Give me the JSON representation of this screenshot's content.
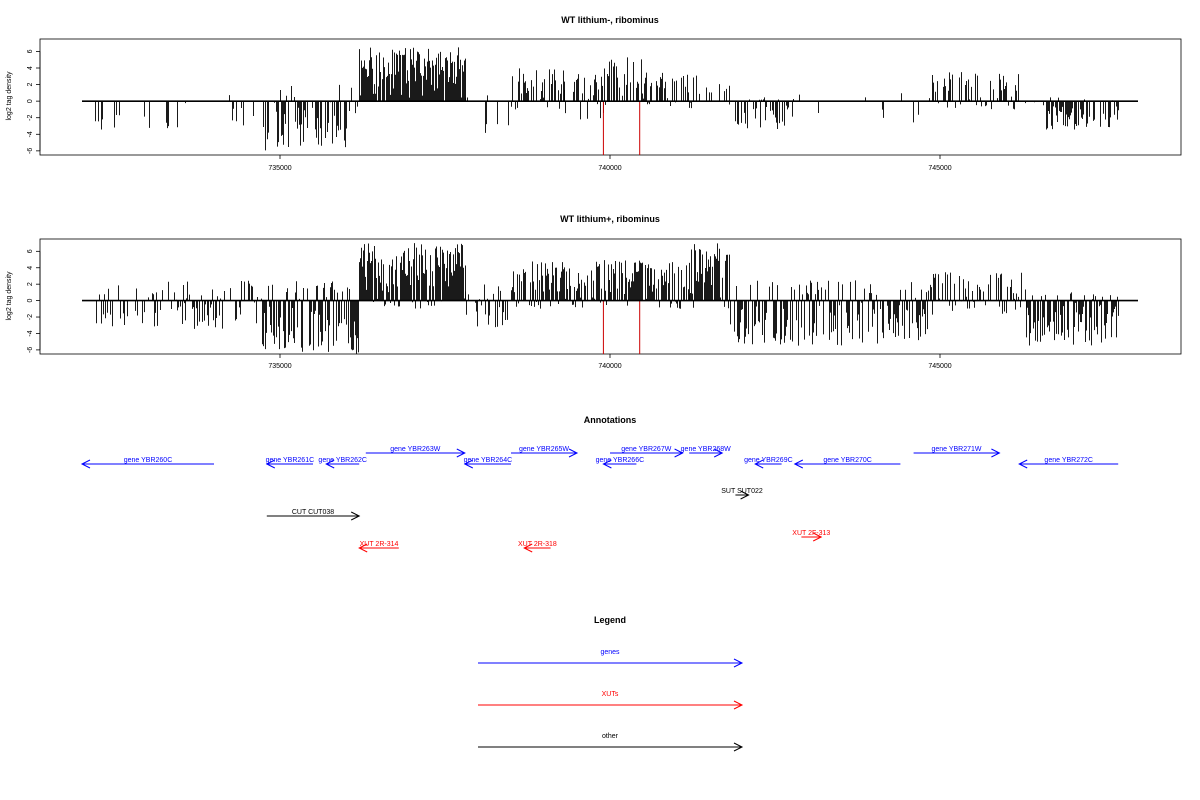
{
  "colors": {
    "genes": "#0000ff",
    "xuts": "#ff0000",
    "other": "#000000",
    "marker": "#cc0000",
    "bars": "#000000",
    "axis": "#000000"
  },
  "chart_data": [
    {
      "type": "bar",
      "title": "WT lithium-, ribominus",
      "ylabel": "log2 tag density",
      "xlim": [
        732000,
        748000
      ],
      "ylim": [
        -6.5,
        7.5
      ],
      "xticks": [
        735000,
        740000,
        745000
      ],
      "xtick_labels": [
        "735000",
        "740000",
        "745000"
      ],
      "yticks": [
        -6,
        -4,
        -2,
        0,
        2,
        4,
        6
      ],
      "ytick_labels": [
        "-6",
        "-4",
        "-2",
        "0",
        "2",
        "4",
        "6"
      ],
      "marker_lines_x": [
        739900,
        740450
      ],
      "marker_lines_ymin": -6.5,
      "segments": [
        {
          "from": 732200,
          "to": 733500,
          "min": -3.5,
          "max": 0,
          "density": 0.16
        },
        {
          "from": 733500,
          "to": 734700,
          "min": -3.5,
          "max": 0.8,
          "density": 0.1
        },
        {
          "from": 734700,
          "to": 736000,
          "min": -6,
          "max": 2,
          "density": 0.55
        },
        {
          "from": 736000,
          "to": 736200,
          "min": -1.5,
          "max": 3.2,
          "density": 0.25
        },
        {
          "from": 736200,
          "to": 737800,
          "min": 0,
          "max": 6.5,
          "density": 0.95
        },
        {
          "from": 737800,
          "to": 738500,
          "min": -4,
          "max": 1,
          "density": 0.2
        },
        {
          "from": 738500,
          "to": 739300,
          "min": -1,
          "max": 4,
          "density": 0.6
        },
        {
          "from": 739300,
          "to": 739900,
          "min": -2.5,
          "max": 3.5,
          "density": 0.45
        },
        {
          "from": 739900,
          "to": 740500,
          "min": -1.5,
          "max": 5.5,
          "density": 0.5
        },
        {
          "from": 740500,
          "to": 741300,
          "min": -1,
          "max": 3.5,
          "density": 0.5
        },
        {
          "from": 741300,
          "to": 741800,
          "min": -0.5,
          "max": 2.5,
          "density": 0.3
        },
        {
          "from": 741800,
          "to": 742700,
          "min": -3.5,
          "max": 0.5,
          "density": 0.45
        },
        {
          "from": 742700,
          "to": 744000,
          "min": -2.5,
          "max": 1,
          "density": 0.08
        },
        {
          "from": 744000,
          "to": 744800,
          "min": -3.5,
          "max": 1,
          "density": 0.1
        },
        {
          "from": 744800,
          "to": 746200,
          "min": -1,
          "max": 3.5,
          "density": 0.5
        },
        {
          "from": 746200,
          "to": 746600,
          "min": -0.5,
          "max": 0.5,
          "density": 0.1
        },
        {
          "from": 746600,
          "to": 747700,
          "min": -3.5,
          "max": 0.5,
          "density": 0.6
        }
      ]
    },
    {
      "type": "bar",
      "title": "WT lithium+, ribominus",
      "ylabel": "log2 tag density",
      "xlim": [
        732000,
        748000
      ],
      "ylim": [
        -6.5,
        7.5
      ],
      "xticks": [
        735000,
        740000,
        745000
      ],
      "xtick_labels": [
        "735000",
        "740000",
        "745000"
      ],
      "yticks": [
        -6,
        -4,
        -2,
        0,
        2,
        4,
        6
      ],
      "ytick_labels": [
        "-6",
        "-4",
        "-2",
        "0",
        "2",
        "4",
        "6"
      ],
      "marker_lines_x": [
        739900,
        740450
      ],
      "marker_lines_ymin": -6.5,
      "segments": [
        {
          "from": 732200,
          "to": 734700,
          "min": -3.5,
          "max": 2.5,
          "density": 0.45
        },
        {
          "from": 734700,
          "to": 736200,
          "min": -6.5,
          "max": 2.5,
          "density": 0.85
        },
        {
          "from": 736200,
          "to": 737800,
          "min": -1,
          "max": 7,
          "density": 1.0
        },
        {
          "from": 737800,
          "to": 738500,
          "min": -3.5,
          "max": 2,
          "density": 0.5
        },
        {
          "from": 738500,
          "to": 741200,
          "min": -1,
          "max": 5,
          "density": 0.8
        },
        {
          "from": 741200,
          "to": 741800,
          "min": -1,
          "max": 7,
          "density": 0.9
        },
        {
          "from": 741800,
          "to": 744800,
          "min": -5.5,
          "max": 2.5,
          "density": 0.7
        },
        {
          "from": 744800,
          "to": 746300,
          "min": -2,
          "max": 3.5,
          "density": 0.6
        },
        {
          "from": 746300,
          "to": 747700,
          "min": -5.5,
          "max": 1,
          "density": 0.8
        }
      ]
    }
  ],
  "annotations": {
    "title": "Annotations",
    "xlim": [
      732000,
      748000
    ],
    "features": [
      {
        "label": "gene YBR260C",
        "type": "gene",
        "strand": "-",
        "start": 732000,
        "end": 734000,
        "row": 1
      },
      {
        "label": "gene YBR261C",
        "type": "gene",
        "strand": "-",
        "start": 734800,
        "end": 735500,
        "row": 1
      },
      {
        "label": "gene YBR262C",
        "type": "gene",
        "strand": "-",
        "start": 735700,
        "end": 736200,
        "row": 1
      },
      {
        "label": "gene YBR263W",
        "type": "gene",
        "strand": "+",
        "start": 736300,
        "end": 737800,
        "row": 0
      },
      {
        "label": "gene YBR264C",
        "type": "gene",
        "strand": "-",
        "start": 737800,
        "end": 738500,
        "row": 1
      },
      {
        "label": "gene YBR265W",
        "type": "gene",
        "strand": "+",
        "start": 738500,
        "end": 739500,
        "row": 0
      },
      {
        "label": "gene YBR266C",
        "type": "gene",
        "strand": "-",
        "start": 739900,
        "end": 740400,
        "row": 1
      },
      {
        "label": "gene YBR267W",
        "type": "gene",
        "strand": "+",
        "start": 740000,
        "end": 741100,
        "row": 0
      },
      {
        "label": "gene YBR268W",
        "type": "gene",
        "strand": "+",
        "start": 741200,
        "end": 741700,
        "row": 0
      },
      {
        "label": "gene YBR269C",
        "type": "gene",
        "strand": "-",
        "start": 742200,
        "end": 742600,
        "row": 1
      },
      {
        "label": "gene YBR270C",
        "type": "gene",
        "strand": "-",
        "start": 742800,
        "end": 744400,
        "row": 1
      },
      {
        "label": "gene YBR271W",
        "type": "gene",
        "strand": "+",
        "start": 744600,
        "end": 745900,
        "row": 0
      },
      {
        "label": "gene YBR272C",
        "type": "gene",
        "strand": "-",
        "start": 746200,
        "end": 747700,
        "row": 1
      },
      {
        "label": "SUT SUT022",
        "type": "other",
        "strand": "+",
        "start": 741900,
        "end": 742100,
        "row": 2
      },
      {
        "label": "CUT CUT038",
        "type": "other",
        "strand": "+",
        "start": 734800,
        "end": 736200,
        "row": 3
      },
      {
        "label": "XUT 2R-314",
        "type": "xut",
        "strand": "-",
        "start": 736200,
        "end": 736800,
        "row": 5
      },
      {
        "label": "XUT 2R-318",
        "type": "xut",
        "strand": "-",
        "start": 738700,
        "end": 739100,
        "row": 5
      },
      {
        "label": "XUT 2F-313",
        "type": "xut",
        "strand": "+",
        "start": 742900,
        "end": 743200,
        "row": 4
      }
    ]
  },
  "legend": {
    "title": "Legend",
    "items": [
      {
        "label": "genes",
        "type": "gene"
      },
      {
        "label": "XUTs",
        "type": "xut"
      },
      {
        "label": "other",
        "type": "other"
      }
    ]
  }
}
